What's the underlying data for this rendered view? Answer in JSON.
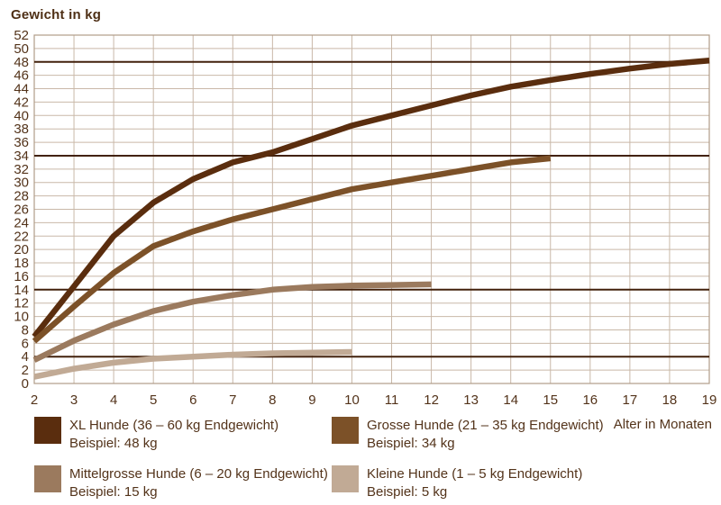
{
  "chart_data": {
    "type": "line",
    "title": "Gewicht in kg",
    "xlabel": "Alter in Monaten",
    "ylabel": "Gewicht in kg",
    "x_range": [
      2,
      19
    ],
    "y_range": [
      0,
      52
    ],
    "x_ticks": [
      2,
      3,
      4,
      5,
      6,
      7,
      8,
      9,
      10,
      11,
      12,
      13,
      14,
      15,
      16,
      17,
      18,
      19
    ],
    "y_ticks": [
      0,
      2,
      4,
      6,
      8,
      10,
      12,
      14,
      16,
      18,
      20,
      22,
      24,
      26,
      28,
      30,
      32,
      34,
      36,
      38,
      40,
      42,
      44,
      46,
      48,
      50,
      52
    ],
    "grid": true,
    "legend_position": "bottom",
    "reference_lines_kg": [
      48,
      34,
      14,
      4
    ],
    "series": [
      {
        "name": "XL Hunde",
        "color": "#5a2d0e",
        "start_month": 2,
        "values": [
          7,
          14.5,
          22,
          27,
          30.5,
          33,
          34.5,
          36.5,
          38.5,
          40,
          41.5,
          43,
          44.3,
          45.3,
          46.2,
          47,
          47.7,
          48.2
        ]
      },
      {
        "name": "Grosse Hunde",
        "color": "#7c5128",
        "start_month": 2,
        "values": [
          6.3,
          11.5,
          16.5,
          20.5,
          22.7,
          24.5,
          26,
          27.5,
          29,
          30,
          31,
          32,
          33,
          33.6
        ]
      },
      {
        "name": "Mittelgrosse Hunde",
        "color": "#9b7a5e",
        "start_month": 2,
        "values": [
          3.5,
          6.4,
          8.8,
          10.8,
          12.2,
          13.2,
          14,
          14.4,
          14.6,
          14.7,
          14.8
        ]
      },
      {
        "name": "Kleine Hunde",
        "color": "#c1aa95",
        "start_month": 2,
        "values": [
          1,
          2.2,
          3.1,
          3.7,
          4,
          4.3,
          4.5,
          4.6,
          4.7
        ]
      }
    ]
  },
  "legend": {
    "items": [
      {
        "label": "XL Hunde (36 – 60 kg Endgewicht)",
        "example": "Beispiel: 48 kg",
        "color": "#5a2d0e"
      },
      {
        "label": "Grosse Hunde (21 – 35 kg Endgewicht)",
        "example": "Beispiel: 34 kg",
        "color": "#7c5128"
      },
      {
        "label": "Mittelgrosse Hunde (6 – 20 kg Endgewicht)",
        "example": "Beispiel: 15 kg",
        "color": "#9b7a5e"
      },
      {
        "label": "Kleine Hunde (1 – 5 kg Endgewicht)",
        "example": "Beispiel: 5 kg",
        "color": "#c1aa95"
      }
    ]
  },
  "colors": {
    "background": "#ffffff",
    "grid": "#c9b8a8",
    "plot_border": "#b09c88",
    "reference_line": "#42210c",
    "axis_text": "#53331a"
  }
}
